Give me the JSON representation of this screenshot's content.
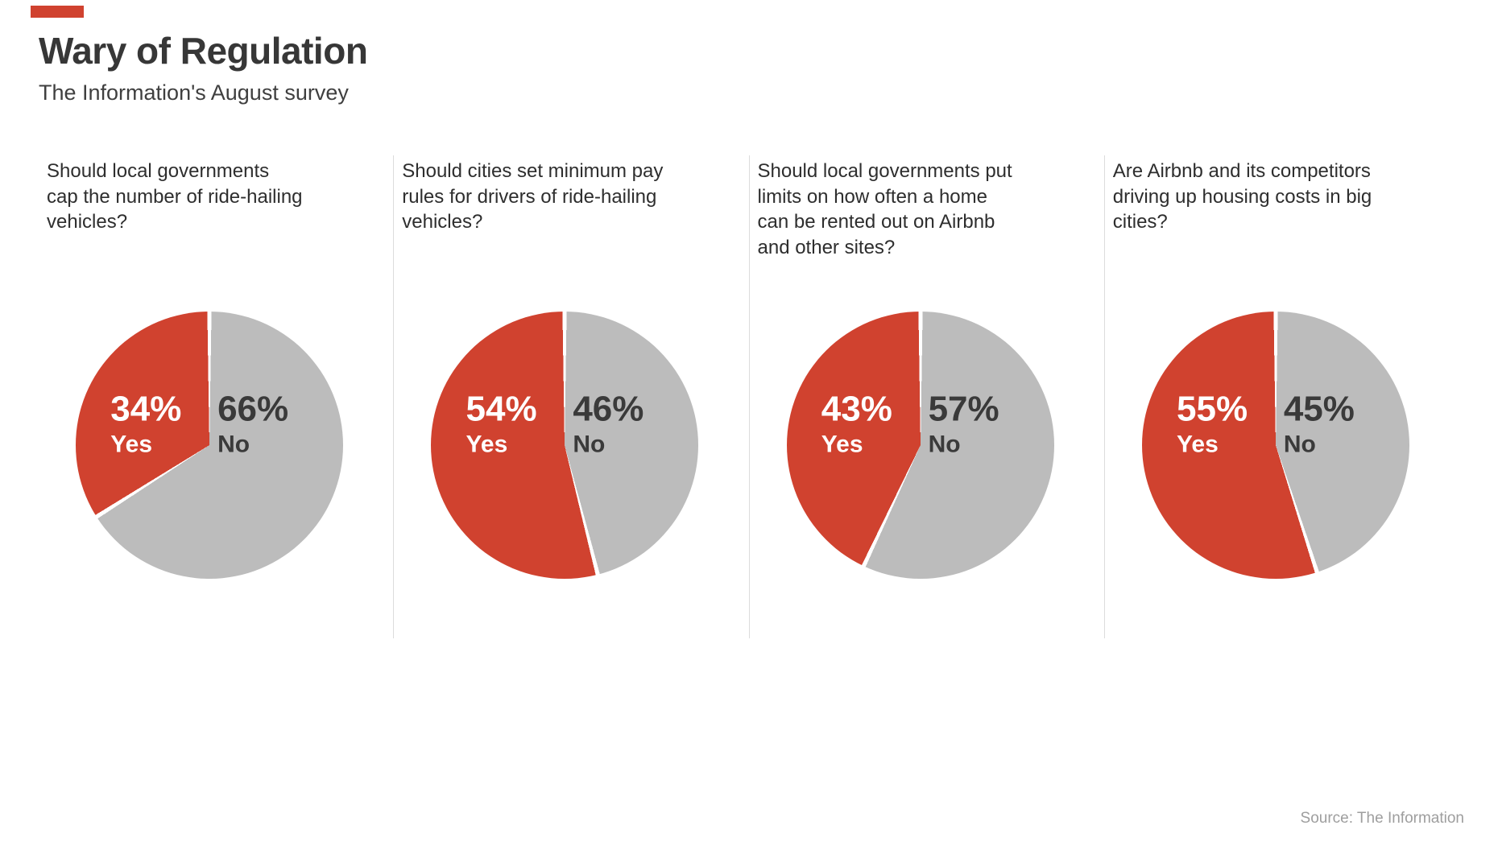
{
  "header": {
    "title": "Wary of Regulation",
    "subtitle": "The Information's August survey"
  },
  "colors": {
    "yes": "#d0422f",
    "no": "#bcbcbc",
    "divider": "#ffffff"
  },
  "source": "Source: The Information",
  "chart_data": [
    {
      "type": "pie",
      "question": "Should local governments\ncap the number of ride-hailing\nvehicles?",
      "series": [
        {
          "name": "Yes",
          "value": 34,
          "display": "34%"
        },
        {
          "name": "No",
          "value": 66,
          "display": "66%"
        }
      ]
    },
    {
      "type": "pie",
      "question": "Should cities set minimum pay\nrules for drivers of ride-hailing\nvehicles?",
      "series": [
        {
          "name": "Yes",
          "value": 54,
          "display": "54%"
        },
        {
          "name": "No",
          "value": 46,
          "display": "46%"
        }
      ]
    },
    {
      "type": "pie",
      "question": "Should local governments put\nlimits on how often a home\ncan be rented out on Airbnb\nand other sites?",
      "series": [
        {
          "name": "Yes",
          "value": 43,
          "display": "43%"
        },
        {
          "name": "No",
          "value": 57,
          "display": "57%"
        }
      ]
    },
    {
      "type": "pie",
      "question": "Are Airbnb and its competitors\ndriving up housing costs in big\ncities?",
      "series": [
        {
          "name": "Yes",
          "value": 55,
          "display": "55%"
        },
        {
          "name": "No",
          "value": 45,
          "display": "45%"
        }
      ]
    }
  ]
}
